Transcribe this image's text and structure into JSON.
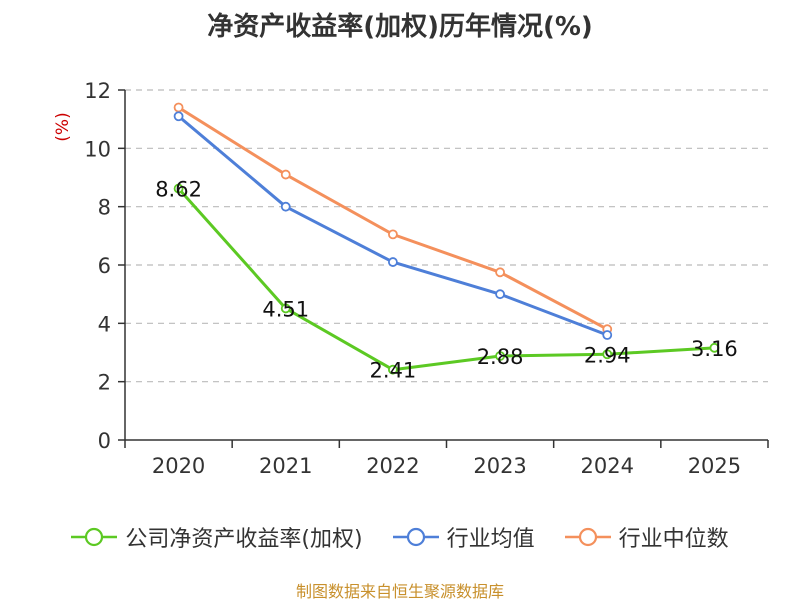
{
  "chart_data": {
    "type": "line",
    "title": "净资产收益率(加权)历年情况(%)",
    "ylabel": "(%)",
    "xlabel": "",
    "categories": [
      "2020",
      "2021",
      "2022",
      "2023",
      "2024",
      "2025"
    ],
    "ylim": [
      0,
      12
    ],
    "yticks": [
      0,
      2,
      4,
      6,
      8,
      10,
      12
    ],
    "grid": true,
    "legend_position": "bottom",
    "series": [
      {
        "name": "公司净资产收益率(加权)",
        "color": "#5cc923",
        "values": [
          8.62,
          4.51,
          2.41,
          2.88,
          2.94,
          3.16
        ],
        "labels": [
          "8.62",
          "4.51",
          "2.41",
          "2.88",
          "2.94",
          "3.16"
        ]
      },
      {
        "name": "行业均值",
        "color": "#4e7fd8",
        "values": [
          11.1,
          8.0,
          6.1,
          5.0,
          3.6,
          null
        ]
      },
      {
        "name": "行业中位数",
        "color": "#f4905c",
        "values": [
          11.4,
          9.1,
          7.05,
          5.75,
          3.8,
          null
        ]
      }
    ]
  },
  "footer": {
    "source": "制图数据来自恒生聚源数据库"
  },
  "colors": {
    "ylabel": "#cc0000",
    "axis": "#333333",
    "grid": "#bbbbbb"
  }
}
